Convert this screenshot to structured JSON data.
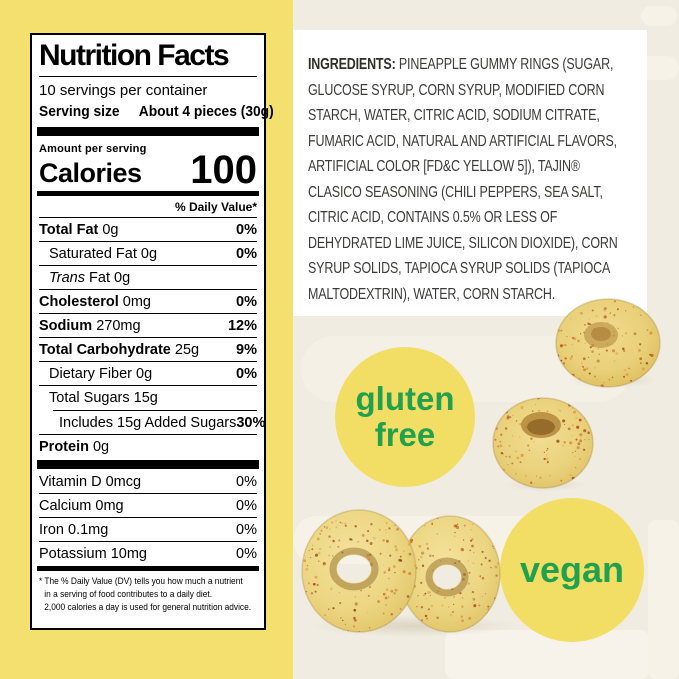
{
  "nutrition_label": {
    "title": "Nutrition Facts",
    "servings_per_container": "10 servings per container",
    "serving_size_label": "Serving size",
    "serving_size_value": "About 4 pieces (30g)",
    "amount_per_serving": "Amount per serving",
    "calories_label": "Calories",
    "calories_value": "100",
    "daily_value_header": "% Daily Value*",
    "nutrient_rows": [
      {
        "bold": "Total Fat",
        "rest": " 0g",
        "pct": "0%"
      },
      {
        "plain": "Saturated Fat 0g",
        "pct": "0%"
      },
      {
        "italic": "Trans",
        "rest": " Fat 0g",
        "pct": ""
      },
      {
        "bold": "Cholesterol",
        "rest": " 0mg",
        "pct": "0%"
      },
      {
        "bold": "Sodium",
        "rest": " 270mg",
        "pct": "12%"
      },
      {
        "bold": "Total Carbohydrate",
        "rest": " 25g",
        "pct": "9%"
      },
      {
        "plain": "Dietary Fiber 0g",
        "pct": "0%"
      },
      {
        "plain": "Total Sugars 15g",
        "pct": ""
      },
      {
        "plain": "Includes 15g Added Sugars",
        "pct": "30%"
      },
      {
        "bold": "Protein",
        "rest": " 0g",
        "pct": ""
      }
    ],
    "vitamin_rows": [
      {
        "plain": "Vitamin D 0mcg",
        "pct": "0%"
      },
      {
        "plain": "Calcium 0mg",
        "pct": "0%"
      },
      {
        "plain": "Iron 0.1mg",
        "pct": "0%"
      },
      {
        "plain": "Potassium 10mg",
        "pct": "0%"
      }
    ],
    "footnote_lines": [
      "* The % Daily Value (DV) tells you how much a nutrient",
      "in a serving of food contributes to a daily diet.",
      "2,000 calories a day is used for general nutrition advice."
    ]
  },
  "ingredients": {
    "heading": "INGREDIENTS:",
    "line1_rest": " PINEAPPLE GUMMY RINGS (SUGAR,",
    "lines": [
      "GLUCOSE SYRUP, CORN SYRUP, MODIFIED CORN",
      "STARCH, WATER, CITRIC ACID, SODIUM CITRATE,",
      "FUMARIC ACID, NATURAL AND ARTIFICIAL FLAVORS,",
      "ARTIFICIAL COLOR [FD&C YELLOW 5]), TAJIN®",
      "CLASICO SEASONING (CHILI PEPPERS, SEA SALT,",
      "CITRIC ACID, CONTAINS 0.5% OR LESS OF",
      "DEHYDRATED LIME JUICE, SILICON DIOXIDE), CORN",
      "SYRUP SOLIDS, TAPIOCA SYRUP SOLIDS (TAPIOCA",
      "MALTODEXTRIN), WATER, CORN STARCH."
    ]
  },
  "badges": {
    "gluten_free": {
      "line1": "gluten",
      "line2": "free"
    },
    "vegan": {
      "label": "vegan"
    }
  },
  "colors": {
    "panel_yellow": "#F4E06F",
    "cream_background": "#F1ECE1",
    "badge_yellow": "#F2DE64",
    "badge_green": "#21A14E",
    "label_text": "#000000",
    "ingredients_text": "#3B3B39"
  }
}
